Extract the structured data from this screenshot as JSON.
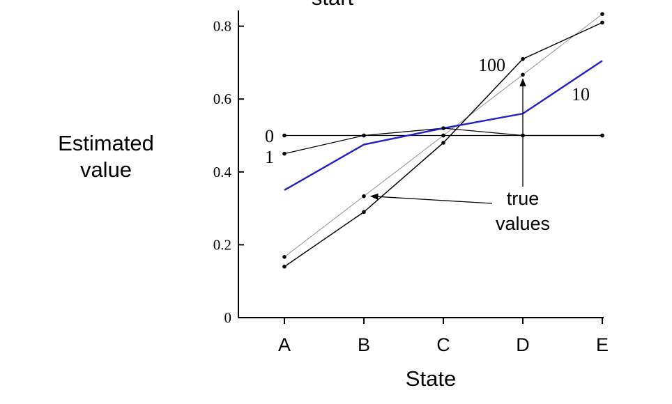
{
  "chart_data": {
    "type": "line",
    "title": "start",
    "xlabel": "State",
    "ylabel_lines": [
      "Estimated",
      "value"
    ],
    "categories": [
      "A",
      "B",
      "C",
      "D",
      "E"
    ],
    "ylim": [
      0,
      0.84
    ],
    "yticks": [
      "0",
      "0.2",
      "0.4",
      "0.6",
      "0.8"
    ],
    "ytick_values": [
      0,
      0.2,
      0.4,
      0.6,
      0.8
    ],
    "grid": false,
    "series": [
      {
        "name": "0",
        "values": [
          0.5,
          0.5,
          0.5,
          0.5,
          0.5
        ],
        "color": "#000000",
        "width": 1.3
      },
      {
        "name": "1",
        "values": [
          0.45,
          0.5,
          0.52,
          0.5,
          0.5
        ],
        "color": "#000000",
        "width": 1.3
      },
      {
        "name": "10",
        "values": [
          0.35,
          0.475,
          0.52,
          0.56,
          0.705
        ],
        "color": "#1f1fc8",
        "width": 2.4
      },
      {
        "name": "100",
        "values": [
          0.14,
          0.29,
          0.48,
          0.71,
          0.81
        ],
        "color": "#000000",
        "width": 1.5
      },
      {
        "values": [
          0.1667,
          0.3333,
          0.5,
          0.6667,
          0.8333
        ],
        "color": "#9a9a9a",
        "width": 1.1
      }
    ],
    "annotations": {
      "true_values_lines": [
        "true",
        "values"
      ]
    }
  }
}
